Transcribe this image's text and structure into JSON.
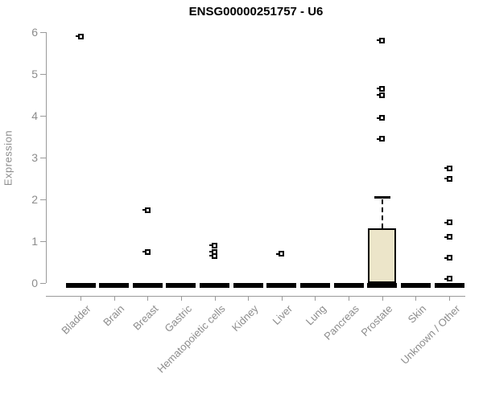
{
  "header": {
    "title": "ENSG00000251757 - U6"
  },
  "colors": {
    "box_fill": "#ece5c9",
    "box_border": "#000000",
    "axis_line": "#9a9a9a",
    "tick_label": "#8c8c8c",
    "title": "#000000",
    "background": "#ffffff"
  },
  "chart_data": {
    "type": "boxplot",
    "title": "ENSG00000251757 - U6",
    "xlabel": "",
    "ylabel": "Expression",
    "ylim": [
      0,
      6
    ],
    "yticks": [
      0,
      1,
      2,
      3,
      4,
      5,
      6
    ],
    "grid": false,
    "legend": false,
    "categories": [
      "Bladder",
      "Brain",
      "Breast",
      "Gastric",
      "Hematopoietic cells",
      "Kidney",
      "Liver",
      "Lung",
      "Pancreas",
      "Prostate",
      "Skin",
      "Unknown / Other"
    ],
    "boxes": [
      {
        "category": "Bladder",
        "whisker_low": 0,
        "q1": 0,
        "median": 0,
        "q3": 0,
        "whisker_high": 0,
        "outliers": [
          5.9
        ]
      },
      {
        "category": "Brain",
        "whisker_low": 0,
        "q1": 0,
        "median": 0,
        "q3": 0,
        "whisker_high": 0,
        "outliers": []
      },
      {
        "category": "Breast",
        "whisker_low": 0,
        "q1": 0,
        "median": 0,
        "q3": 0,
        "whisker_high": 0,
        "outliers": [
          1.75,
          0.75
        ]
      },
      {
        "category": "Gastric",
        "whisker_low": 0,
        "q1": 0,
        "median": 0,
        "q3": 0,
        "whisker_high": 0,
        "outliers": []
      },
      {
        "category": "Hematopoietic cells",
        "whisker_low": 0,
        "q1": 0,
        "median": 0,
        "q3": 0,
        "whisker_high": 0,
        "outliers": [
          0.9,
          0.75,
          0.65
        ]
      },
      {
        "category": "Kidney",
        "whisker_low": 0,
        "q1": 0,
        "median": 0,
        "q3": 0,
        "whisker_high": 0,
        "outliers": []
      },
      {
        "category": "Liver",
        "whisker_low": 0,
        "q1": 0,
        "median": 0,
        "q3": 0,
        "whisker_high": 0,
        "outliers": [
          0.7
        ]
      },
      {
        "category": "Lung",
        "whisker_low": 0,
        "q1": 0,
        "median": 0,
        "q3": 0,
        "whisker_high": 0,
        "outliers": []
      },
      {
        "category": "Pancreas",
        "whisker_low": 0,
        "q1": 0,
        "median": 0,
        "q3": 0,
        "whisker_high": 0,
        "outliers": []
      },
      {
        "category": "Prostate",
        "whisker_low": 0,
        "q1": 0,
        "median": 0,
        "q3": 1.3,
        "whisker_high": 2.05,
        "outliers": [
          5.8,
          4.65,
          4.5,
          3.95,
          3.45
        ]
      },
      {
        "category": "Skin",
        "whisker_low": 0,
        "q1": 0,
        "median": 0,
        "q3": 0,
        "whisker_high": 0,
        "outliers": []
      },
      {
        "category": "Unknown / Other",
        "whisker_low": 0,
        "q1": 0,
        "median": 0,
        "q3": 0,
        "whisker_high": 0,
        "outliers": [
          2.75,
          2.5,
          1.45,
          1.1,
          0.6,
          0.1
        ]
      }
    ]
  }
}
